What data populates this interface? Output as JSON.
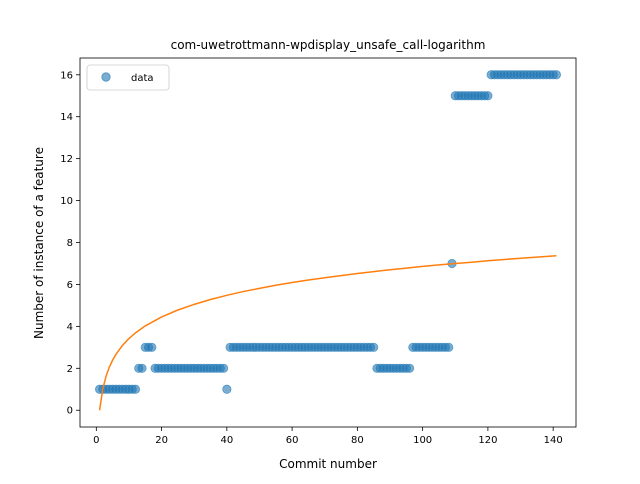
{
  "chart_data": {
    "type": "scatter",
    "title": "com-uwetrottmann-wpdisplay_unsafe_call-logarithm",
    "xlabel": "Commit number",
    "ylabel": "Number of instance of a feature",
    "xlim": [
      -5,
      147
    ],
    "ylim": [
      -0.8,
      16.8
    ],
    "xticks": [
      0,
      20,
      40,
      60,
      80,
      100,
      120,
      140
    ],
    "yticks": [
      0,
      2,
      4,
      6,
      8,
      10,
      12,
      14,
      16
    ],
    "grid": false,
    "legend": {
      "placement": "top-left",
      "entries": [
        "data"
      ]
    },
    "colors": {
      "data": "#1f77b4",
      "fit": "#ff7f0e"
    },
    "series": [
      {
        "name": "data",
        "kind": "scatter",
        "points": [
          [
            1,
            1
          ],
          [
            2,
            1
          ],
          [
            3,
            1
          ],
          [
            4,
            1
          ],
          [
            5,
            1
          ],
          [
            6,
            1
          ],
          [
            7,
            1
          ],
          [
            8,
            1
          ],
          [
            9,
            1
          ],
          [
            10,
            1
          ],
          [
            11,
            1
          ],
          [
            12,
            1
          ],
          [
            13,
            2
          ],
          [
            14,
            2
          ],
          [
            15,
            3
          ],
          [
            16,
            3
          ],
          [
            17,
            3
          ],
          [
            18,
            2
          ],
          [
            19,
            2
          ],
          [
            20,
            2
          ],
          [
            21,
            2
          ],
          [
            22,
            2
          ],
          [
            23,
            2
          ],
          [
            24,
            2
          ],
          [
            25,
            2
          ],
          [
            26,
            2
          ],
          [
            27,
            2
          ],
          [
            28,
            2
          ],
          [
            29,
            2
          ],
          [
            30,
            2
          ],
          [
            31,
            2
          ],
          [
            32,
            2
          ],
          [
            33,
            2
          ],
          [
            34,
            2
          ],
          [
            35,
            2
          ],
          [
            36,
            2
          ],
          [
            37,
            2
          ],
          [
            38,
            2
          ],
          [
            39,
            2
          ],
          [
            40,
            1
          ],
          [
            41,
            3
          ],
          [
            42,
            3
          ],
          [
            43,
            3
          ],
          [
            44,
            3
          ],
          [
            45,
            3
          ],
          [
            46,
            3
          ],
          [
            47,
            3
          ],
          [
            48,
            3
          ],
          [
            49,
            3
          ],
          [
            50,
            3
          ],
          [
            51,
            3
          ],
          [
            52,
            3
          ],
          [
            53,
            3
          ],
          [
            54,
            3
          ],
          [
            55,
            3
          ],
          [
            56,
            3
          ],
          [
            57,
            3
          ],
          [
            58,
            3
          ],
          [
            59,
            3
          ],
          [
            60,
            3
          ],
          [
            61,
            3
          ],
          [
            62,
            3
          ],
          [
            63,
            3
          ],
          [
            64,
            3
          ],
          [
            65,
            3
          ],
          [
            66,
            3
          ],
          [
            67,
            3
          ],
          [
            68,
            3
          ],
          [
            69,
            3
          ],
          [
            70,
            3
          ],
          [
            71,
            3
          ],
          [
            72,
            3
          ],
          [
            73,
            3
          ],
          [
            74,
            3
          ],
          [
            75,
            3
          ],
          [
            76,
            3
          ],
          [
            77,
            3
          ],
          [
            78,
            3
          ],
          [
            79,
            3
          ],
          [
            80,
            3
          ],
          [
            81,
            3
          ],
          [
            82,
            3
          ],
          [
            83,
            3
          ],
          [
            84,
            3
          ],
          [
            85,
            3
          ],
          [
            86,
            2
          ],
          [
            87,
            2
          ],
          [
            88,
            2
          ],
          [
            89,
            2
          ],
          [
            90,
            2
          ],
          [
            91,
            2
          ],
          [
            92,
            2
          ],
          [
            93,
            2
          ],
          [
            94,
            2
          ],
          [
            95,
            2
          ],
          [
            96,
            2
          ],
          [
            97,
            3
          ],
          [
            98,
            3
          ],
          [
            99,
            3
          ],
          [
            100,
            3
          ],
          [
            101,
            3
          ],
          [
            102,
            3
          ],
          [
            103,
            3
          ],
          [
            104,
            3
          ],
          [
            105,
            3
          ],
          [
            106,
            3
          ],
          [
            107,
            3
          ],
          [
            108,
            3
          ],
          [
            109,
            7
          ],
          [
            110,
            15
          ],
          [
            111,
            15
          ],
          [
            112,
            15
          ],
          [
            113,
            15
          ],
          [
            114,
            15
          ],
          [
            115,
            15
          ],
          [
            116,
            15
          ],
          [
            117,
            15
          ],
          [
            118,
            15
          ],
          [
            119,
            15
          ],
          [
            120,
            15
          ],
          [
            121,
            16
          ],
          [
            122,
            16
          ],
          [
            123,
            16
          ],
          [
            124,
            16
          ],
          [
            125,
            16
          ],
          [
            126,
            16
          ],
          [
            127,
            16
          ],
          [
            128,
            16
          ],
          [
            129,
            16
          ],
          [
            130,
            16
          ],
          [
            131,
            16
          ],
          [
            132,
            16
          ],
          [
            133,
            16
          ],
          [
            134,
            16
          ],
          [
            135,
            16
          ],
          [
            136,
            16
          ],
          [
            137,
            16
          ],
          [
            138,
            16
          ],
          [
            139,
            16
          ],
          [
            140,
            16
          ],
          [
            141,
            16
          ]
        ]
      },
      {
        "kind": "line",
        "points": [
          [
            1,
            0.0
          ],
          [
            2,
            1.03
          ],
          [
            3,
            1.63
          ],
          [
            4,
            2.06
          ],
          [
            5,
            2.39
          ],
          [
            6,
            2.66
          ],
          [
            8,
            3.09
          ],
          [
            10,
            3.42
          ],
          [
            12,
            3.69
          ],
          [
            15,
            4.02
          ],
          [
            20,
            4.45
          ],
          [
            25,
            4.78
          ],
          [
            30,
            5.05
          ],
          [
            35,
            5.28
          ],
          [
            40,
            5.48
          ],
          [
            45,
            5.66
          ],
          [
            50,
            5.81
          ],
          [
            55,
            5.96
          ],
          [
            60,
            6.09
          ],
          [
            65,
            6.21
          ],
          [
            70,
            6.32
          ],
          [
            75,
            6.42
          ],
          [
            80,
            6.52
          ],
          [
            85,
            6.61
          ],
          [
            90,
            6.7
          ],
          [
            95,
            6.78
          ],
          [
            100,
            6.86
          ],
          [
            105,
            6.93
          ],
          [
            110,
            7.0
          ],
          [
            115,
            7.06
          ],
          [
            120,
            7.13
          ],
          [
            125,
            7.19
          ],
          [
            130,
            7.25
          ],
          [
            135,
            7.3
          ],
          [
            141,
            7.37
          ]
        ]
      }
    ]
  }
}
